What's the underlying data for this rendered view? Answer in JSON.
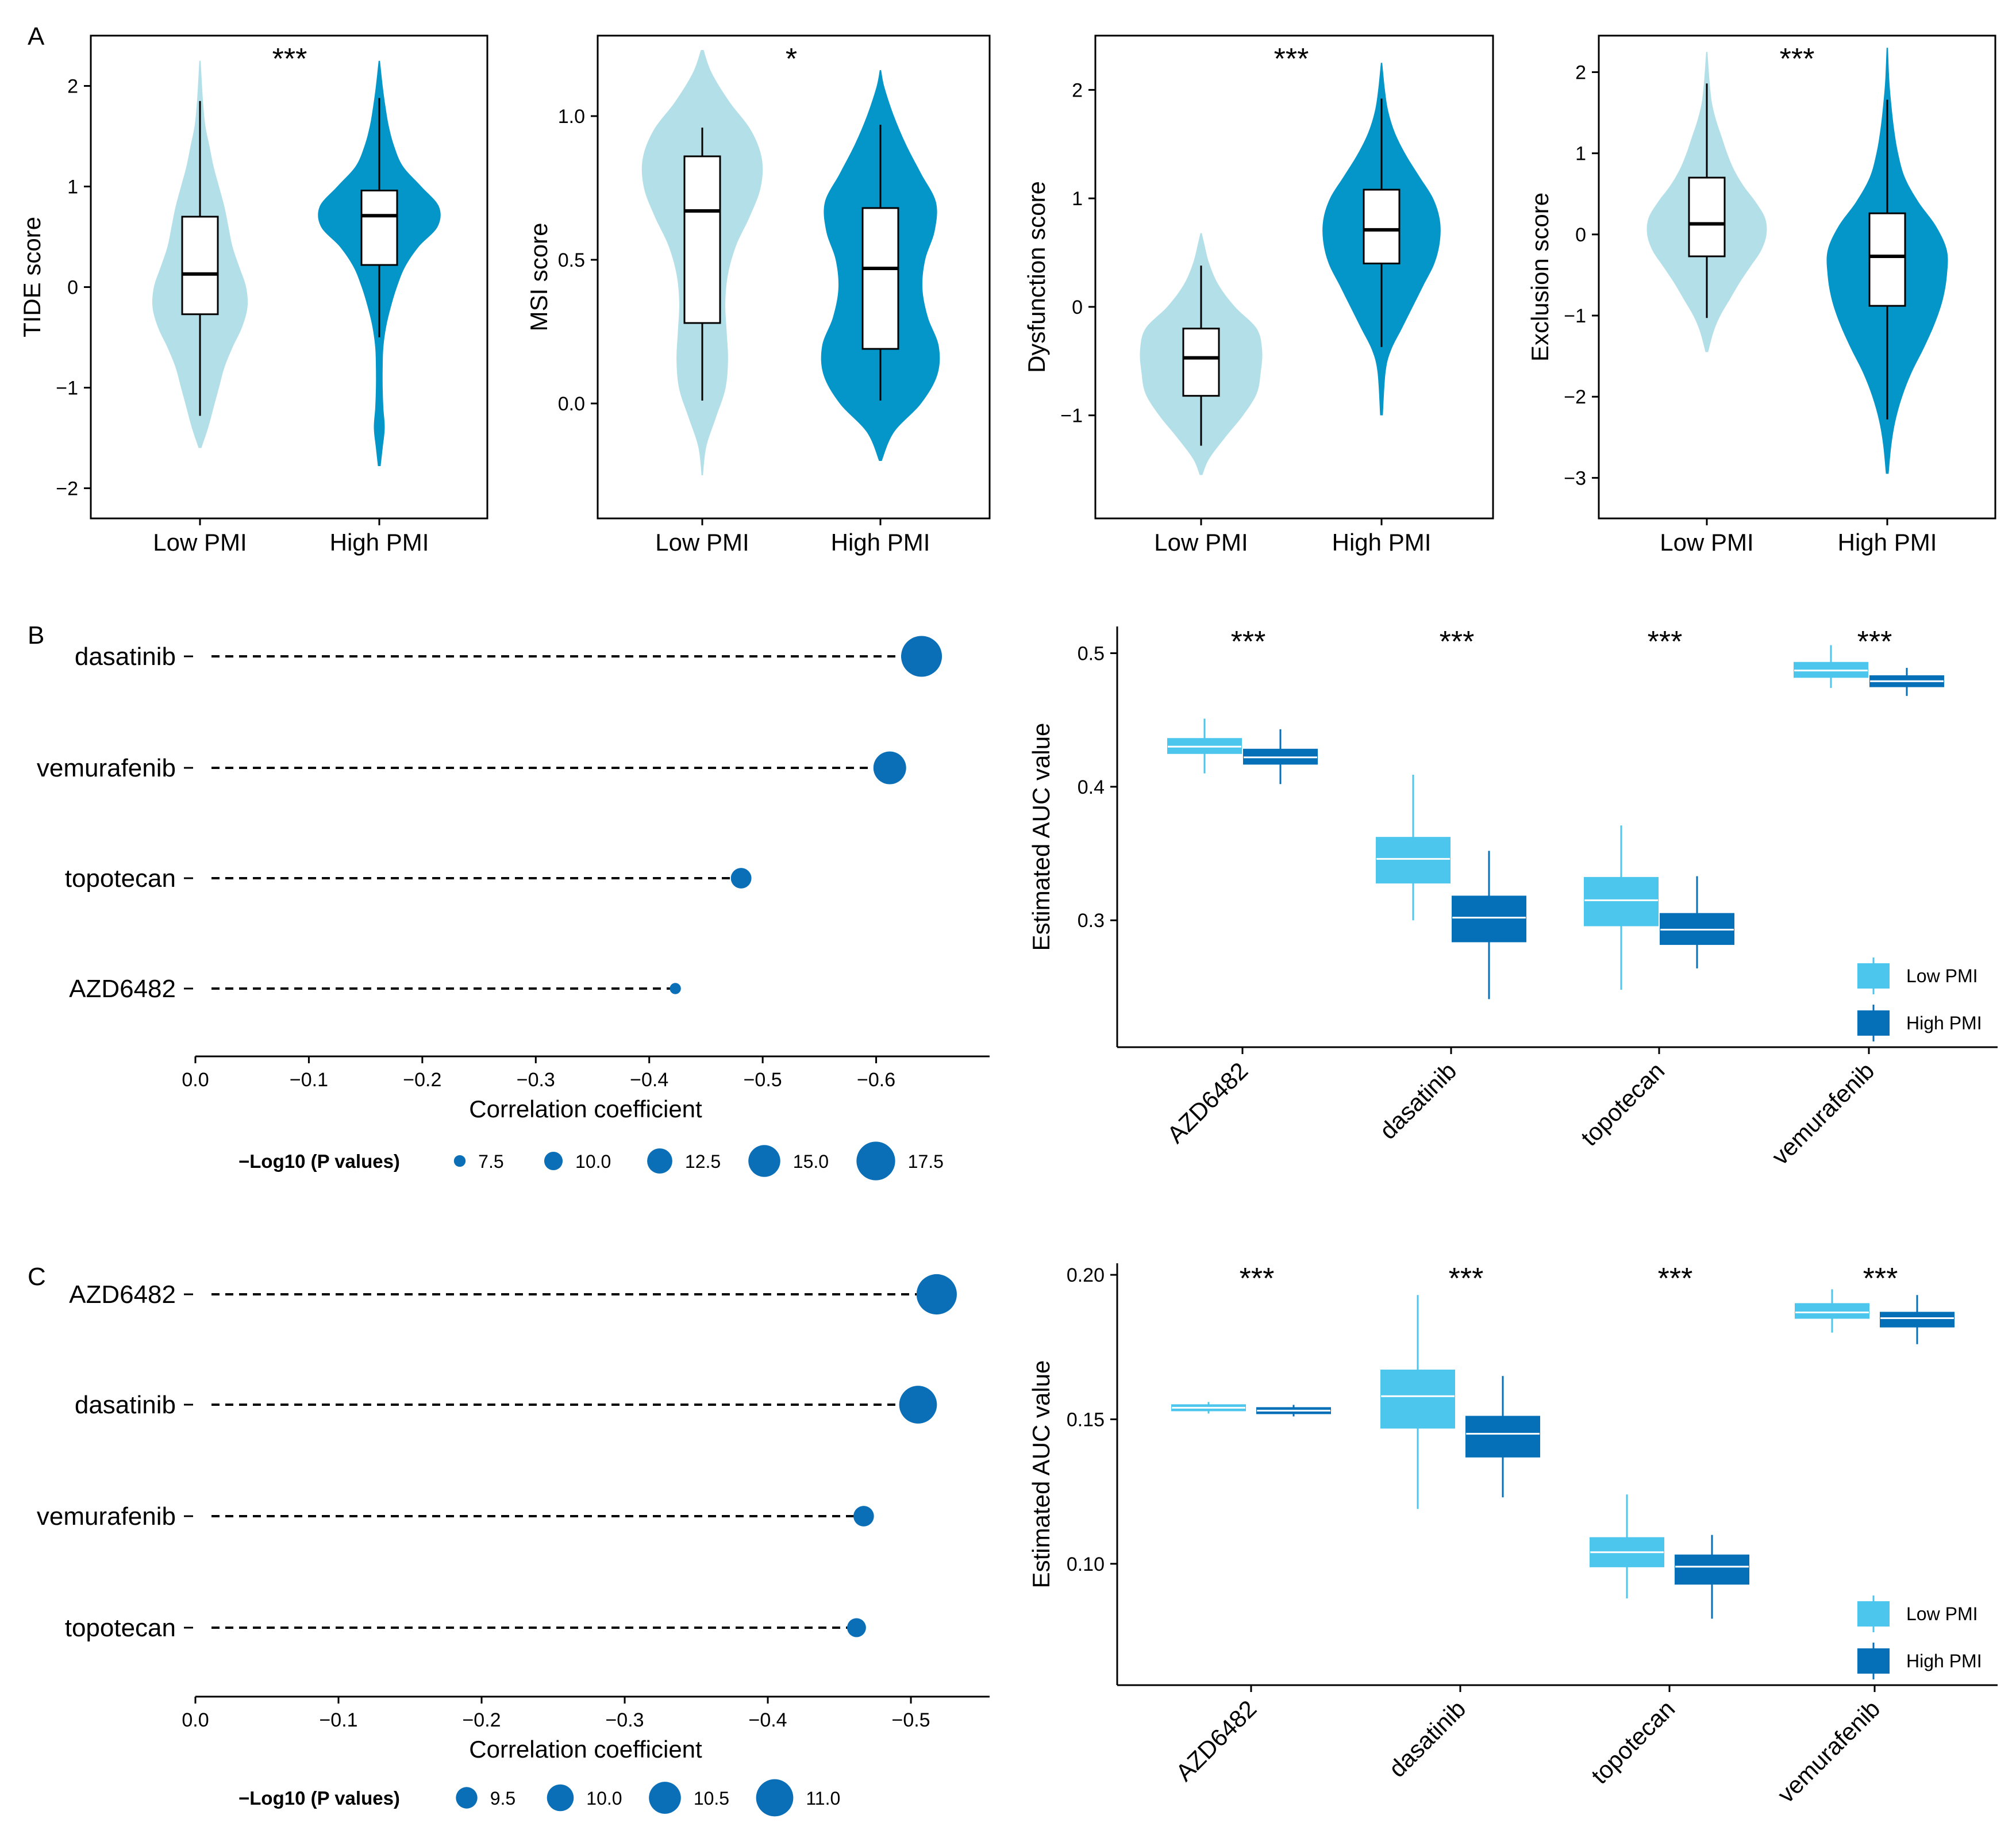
{
  "colors": {
    "low_violin": "#B3E0E8",
    "high_violin": "#0496C8",
    "low_box": "#4CC6EC",
    "high_box": "#0570B8",
    "dot": "#0A6FB7"
  },
  "chart_data": [
    {
      "type": "violin",
      "panel": "A",
      "title": "",
      "signif": "***",
      "ylabel": "TIDE score",
      "categories": [
        "Low PMI",
        "High PMI"
      ],
      "ylim": [
        -2.3,
        2.5
      ],
      "yticks": [
        -2,
        -1,
        0,
        1,
        2
      ],
      "groups": [
        {
          "name": "Low PMI",
          "box": {
            "q1": -0.27,
            "median": 0.13,
            "q3": 0.7,
            "whisker_low": -1.28,
            "whisker_high": 1.85
          },
          "density": [
            [
              -1.6,
              0.02
            ],
            [
              -1.4,
              0.12
            ],
            [
              -1.2,
              0.2
            ],
            [
              -1.0,
              0.28
            ],
            [
              -0.8,
              0.36
            ],
            [
              -0.6,
              0.48
            ],
            [
              -0.4,
              0.62
            ],
            [
              -0.2,
              0.7
            ],
            [
              0.0,
              0.68
            ],
            [
              0.2,
              0.58
            ],
            [
              0.4,
              0.48
            ],
            [
              0.6,
              0.42
            ],
            [
              0.8,
              0.36
            ],
            [
              1.0,
              0.28
            ],
            [
              1.2,
              0.2
            ],
            [
              1.4,
              0.14
            ],
            [
              1.6,
              0.08
            ],
            [
              1.8,
              0.05
            ],
            [
              2.0,
              0.03
            ],
            [
              2.25,
              0.01
            ]
          ]
        },
        {
          "name": "High PMI",
          "box": {
            "q1": 0.22,
            "median": 0.71,
            "q3": 0.96,
            "whisker_low": -0.5,
            "whisker_high": 1.88
          },
          "density": [
            [
              -1.78,
              0.02
            ],
            [
              -1.6,
              0.05
            ],
            [
              -1.4,
              0.08
            ],
            [
              -1.2,
              0.06
            ],
            [
              -1.0,
              0.05
            ],
            [
              -0.8,
              0.05
            ],
            [
              -0.6,
              0.06
            ],
            [
              -0.4,
              0.1
            ],
            [
              -0.2,
              0.17
            ],
            [
              0.0,
              0.26
            ],
            [
              0.2,
              0.38
            ],
            [
              0.4,
              0.58
            ],
            [
              0.6,
              0.86
            ],
            [
              0.8,
              0.88
            ],
            [
              1.0,
              0.62
            ],
            [
              1.2,
              0.35
            ],
            [
              1.4,
              0.22
            ],
            [
              1.6,
              0.14
            ],
            [
              1.8,
              0.09
            ],
            [
              2.0,
              0.05
            ],
            [
              2.25,
              0.01
            ]
          ]
        }
      ]
    },
    {
      "type": "violin",
      "panel": "",
      "signif": "*",
      "ylabel": "MSI score",
      "categories": [
        "Low PMI",
        "High PMI"
      ],
      "ylim": [
        -0.4,
        1.28
      ],
      "yticks": [
        0.0,
        0.5,
        1.0
      ],
      "ytick_labels": [
        "0.0",
        "0.5",
        "1.0"
      ],
      "groups": [
        {
          "name": "Low PMI",
          "box": {
            "q1": 0.28,
            "median": 0.67,
            "q3": 0.86,
            "whisker_low": 0.01,
            "whisker_high": 0.96
          },
          "density": [
            [
              -0.25,
              0.01
            ],
            [
              -0.15,
              0.06
            ],
            [
              -0.05,
              0.2
            ],
            [
              0.05,
              0.34
            ],
            [
              0.15,
              0.38
            ],
            [
              0.25,
              0.36
            ],
            [
              0.35,
              0.34
            ],
            [
              0.45,
              0.38
            ],
            [
              0.55,
              0.5
            ],
            [
              0.65,
              0.7
            ],
            [
              0.75,
              0.86
            ],
            [
              0.85,
              0.88
            ],
            [
              0.95,
              0.72
            ],
            [
              1.05,
              0.4
            ],
            [
              1.15,
              0.14
            ],
            [
              1.23,
              0.02
            ]
          ]
        },
        {
          "name": "High PMI",
          "box": {
            "q1": 0.19,
            "median": 0.47,
            "q3": 0.68,
            "whisker_low": 0.01,
            "whisker_high": 0.97
          },
          "density": [
            [
              -0.2,
              0.02
            ],
            [
              -0.1,
              0.2
            ],
            [
              0.0,
              0.6
            ],
            [
              0.1,
              0.84
            ],
            [
              0.2,
              0.86
            ],
            [
              0.3,
              0.7
            ],
            [
              0.4,
              0.62
            ],
            [
              0.5,
              0.66
            ],
            [
              0.6,
              0.8
            ],
            [
              0.7,
              0.82
            ],
            [
              0.8,
              0.6
            ],
            [
              0.9,
              0.38
            ],
            [
              1.0,
              0.2
            ],
            [
              1.1,
              0.06
            ],
            [
              1.16,
              0.01
            ]
          ]
        }
      ]
    },
    {
      "type": "violin",
      "panel": "",
      "signif": "***",
      "ylabel": "Dysfunction score",
      "categories": [
        "Low PMI",
        "High PMI"
      ],
      "ylim": [
        -1.95,
        2.5
      ],
      "yticks": [
        -1,
        0,
        1,
        2
      ],
      "groups": [
        {
          "name": "Low PMI",
          "box": {
            "q1": -0.82,
            "median": -0.47,
            "q3": -0.2,
            "whisker_low": -1.28,
            "whisker_high": 0.38
          },
          "density": [
            [
              -1.55,
              0.02
            ],
            [
              -1.4,
              0.12
            ],
            [
              -1.2,
              0.36
            ],
            [
              -1.0,
              0.62
            ],
            [
              -0.8,
              0.82
            ],
            [
              -0.6,
              0.88
            ],
            [
              -0.4,
              0.9
            ],
            [
              -0.2,
              0.82
            ],
            [
              0.0,
              0.5
            ],
            [
              0.2,
              0.26
            ],
            [
              0.4,
              0.12
            ],
            [
              0.6,
              0.04
            ],
            [
              0.68,
              0.01
            ]
          ]
        },
        {
          "name": "High PMI",
          "box": {
            "q1": 0.4,
            "median": 0.71,
            "q3": 1.08,
            "whisker_low": -0.37,
            "whisker_high": 1.92
          },
          "density": [
            [
              -1.0,
              0.02
            ],
            [
              -0.6,
              0.06
            ],
            [
              -0.4,
              0.14
            ],
            [
              -0.2,
              0.3
            ],
            [
              0.0,
              0.46
            ],
            [
              0.2,
              0.62
            ],
            [
              0.4,
              0.78
            ],
            [
              0.6,
              0.86
            ],
            [
              0.8,
              0.86
            ],
            [
              1.0,
              0.76
            ],
            [
              1.2,
              0.56
            ],
            [
              1.4,
              0.36
            ],
            [
              1.6,
              0.2
            ],
            [
              1.8,
              0.1
            ],
            [
              2.0,
              0.05
            ],
            [
              2.25,
              0.01
            ]
          ]
        }
      ]
    },
    {
      "type": "violin",
      "panel": "",
      "signif": "***",
      "ylabel": "Exclusion score",
      "categories": [
        "Low PMI",
        "High PMI"
      ],
      "ylim": [
        -3.5,
        2.45
      ],
      "yticks": [
        -3,
        -2,
        -1,
        0,
        1,
        2
      ],
      "groups": [
        {
          "name": "Low PMI",
          "box": {
            "q1": -0.27,
            "median": 0.13,
            "q3": 0.7,
            "whisker_low": -1.03,
            "whisker_high": 1.86
          },
          "density": [
            [
              -1.45,
              0.02
            ],
            [
              -1.2,
              0.1
            ],
            [
              -1.0,
              0.2
            ],
            [
              -0.8,
              0.34
            ],
            [
              -0.6,
              0.48
            ],
            [
              -0.4,
              0.64
            ],
            [
              -0.2,
              0.8
            ],
            [
              0.0,
              0.88
            ],
            [
              0.2,
              0.86
            ],
            [
              0.4,
              0.72
            ],
            [
              0.6,
              0.54
            ],
            [
              0.8,
              0.4
            ],
            [
              1.0,
              0.3
            ],
            [
              1.2,
              0.22
            ],
            [
              1.4,
              0.14
            ],
            [
              1.6,
              0.08
            ],
            [
              1.8,
              0.05
            ],
            [
              2.0,
              0.03
            ],
            [
              2.25,
              0.01
            ]
          ]
        },
        {
          "name": "High PMI",
          "box": {
            "q1": -0.88,
            "median": -0.27,
            "q3": 0.26,
            "whisker_low": -2.28,
            "whisker_high": 1.66
          },
          "density": [
            [
              -2.95,
              0.02
            ],
            [
              -2.6,
              0.06
            ],
            [
              -2.3,
              0.12
            ],
            [
              -2.0,
              0.22
            ],
            [
              -1.7,
              0.36
            ],
            [
              -1.4,
              0.54
            ],
            [
              -1.1,
              0.7
            ],
            [
              -0.8,
              0.82
            ],
            [
              -0.5,
              0.88
            ],
            [
              -0.2,
              0.88
            ],
            [
              0.1,
              0.72
            ],
            [
              0.4,
              0.46
            ],
            [
              0.7,
              0.26
            ],
            [
              1.0,
              0.16
            ],
            [
              1.3,
              0.1
            ],
            [
              1.6,
              0.06
            ],
            [
              1.9,
              0.03
            ],
            [
              2.3,
              0.01
            ]
          ]
        }
      ]
    },
    {
      "type": "lollipop",
      "panel": "B",
      "xlabel": "Correlation coefficient",
      "xlim": [
        0.0,
        -0.7
      ],
      "xticks": [
        0.0,
        -0.1,
        -0.2,
        -0.3,
        -0.4,
        -0.5,
        -0.6
      ],
      "xtick_labels": [
        "0.0",
        "−0.1",
        "−0.2",
        "−0.3",
        "−0.4",
        "−0.5",
        "−0.6"
      ],
      "drugs": [
        "dasatinib",
        "vemurafenib",
        "topotecan",
        "AZD6482"
      ],
      "correlation": [
        -0.64,
        -0.612,
        -0.481,
        -0.423
      ],
      "neg_log10_p": [
        18.3,
        15.3,
        10.8,
        7.3
      ],
      "legend_title": "−Log10 (P values)",
      "legend_values": [
        7.5,
        10.0,
        12.5,
        15.0,
        17.5
      ],
      "legend_labels": [
        "7.5",
        "10.0",
        "12.5",
        "15.0",
        "17.5"
      ],
      "size_range": [
        7.0,
        18.5
      ]
    },
    {
      "type": "box",
      "panel": "",
      "ylabel": "Estimated AUC value",
      "categories": [
        "AZD6482",
        "dasatinib",
        "topotecan",
        "vemurafenib"
      ],
      "signif": [
        "***",
        "***",
        "***",
        "***"
      ],
      "ylim": [
        0.205,
        0.52
      ],
      "yticks": [
        0.3,
        0.4,
        0.5
      ],
      "ytick_labels": [
        "0.3",
        "0.4",
        "0.5"
      ],
      "series": [
        {
          "name": "Low PMI",
          "boxes": [
            {
              "q1": 0.425,
              "median": 0.43,
              "q3": 0.436,
              "whisker_low": 0.41,
              "whisker_high": 0.451
            },
            {
              "q1": 0.328,
              "median": 0.346,
              "q3": 0.362,
              "whisker_low": 0.3,
              "whisker_high": 0.409
            },
            {
              "q1": 0.296,
              "median": 0.315,
              "q3": 0.332,
              "whisker_low": 0.248,
              "whisker_high": 0.371
            },
            {
              "q1": 0.482,
              "median": 0.487,
              "q3": 0.493,
              "whisker_low": 0.474,
              "whisker_high": 0.506
            }
          ]
        },
        {
          "name": "High PMI",
          "boxes": [
            {
              "q1": 0.417,
              "median": 0.422,
              "q3": 0.428,
              "whisker_low": 0.402,
              "whisker_high": 0.443
            },
            {
              "q1": 0.284,
              "median": 0.302,
              "q3": 0.318,
              "whisker_low": 0.241,
              "whisker_high": 0.352
            },
            {
              "q1": 0.282,
              "median": 0.293,
              "q3": 0.305,
              "whisker_low": 0.264,
              "whisker_high": 0.333
            },
            {
              "q1": 0.475,
              "median": 0.479,
              "q3": 0.483,
              "whisker_low": 0.468,
              "whisker_high": 0.489
            }
          ]
        }
      ],
      "legend": [
        "Low PMI",
        "High PMI"
      ]
    },
    {
      "type": "lollipop",
      "panel": "C",
      "xlabel": "Correlation coefficient",
      "xlim": [
        0.0,
        -0.555
      ],
      "xticks": [
        0.0,
        -0.1,
        -0.2,
        -0.3,
        -0.4,
        -0.5
      ],
      "xtick_labels": [
        "0.0",
        "−0.1",
        "−0.2",
        "−0.3",
        "−0.4",
        "−0.5"
      ],
      "drugs": [
        "AZD6482",
        "dasatinib",
        "vemurafenib",
        "topotecan"
      ],
      "correlation": [
        -0.518,
        -0.505,
        -0.467,
        -0.462
      ],
      "neg_log10_p": [
        11.3,
        11.05,
        9.4,
        9.25
      ],
      "legend_title": "−Log10 (P values)",
      "legend_values": [
        9.5,
        10.0,
        10.5,
        11.0
      ],
      "legend_labels": [
        "9.5",
        "10.0",
        "10.5",
        "11.0"
      ],
      "size_range": [
        9.2,
        11.4
      ]
    },
    {
      "type": "box",
      "panel": "",
      "ylabel": "Estimated AUC value",
      "categories": [
        "AZD6482",
        "dasatinib",
        "topotecan",
        "vemurafenib"
      ],
      "signif": [
        "***",
        "***",
        "***",
        "***"
      ],
      "ylim": [
        0.058,
        0.204
      ],
      "yticks": [
        0.1,
        0.15,
        0.2
      ],
      "ytick_labels": [
        "0.10",
        "0.15",
        "0.20"
      ],
      "series": [
        {
          "name": "Low PMI",
          "boxes": [
            {
              "q1": 0.153,
              "median": 0.154,
              "q3": 0.155,
              "whisker_low": 0.152,
              "whisker_high": 0.156
            },
            {
              "q1": 0.147,
              "median": 0.158,
              "q3": 0.167,
              "whisker_low": 0.119,
              "whisker_high": 0.193
            },
            {
              "q1": 0.099,
              "median": 0.104,
              "q3": 0.109,
              "whisker_low": 0.088,
              "whisker_high": 0.124
            },
            {
              "q1": 0.185,
              "median": 0.187,
              "q3": 0.19,
              "whisker_low": 0.18,
              "whisker_high": 0.195
            }
          ]
        },
        {
          "name": "High PMI",
          "boxes": [
            {
              "q1": 0.152,
              "median": 0.153,
              "q3": 0.154,
              "whisker_low": 0.151,
              "whisker_high": 0.155
            },
            {
              "q1": 0.137,
              "median": 0.145,
              "q3": 0.151,
              "whisker_low": 0.123,
              "whisker_high": 0.165
            },
            {
              "q1": 0.093,
              "median": 0.099,
              "q3": 0.103,
              "whisker_low": 0.081,
              "whisker_high": 0.11
            },
            {
              "q1": 0.182,
              "median": 0.185,
              "q3": 0.187,
              "whisker_low": 0.176,
              "whisker_high": 0.193
            }
          ]
        }
      ],
      "legend": [
        "Low PMI",
        "High PMI"
      ]
    }
  ]
}
